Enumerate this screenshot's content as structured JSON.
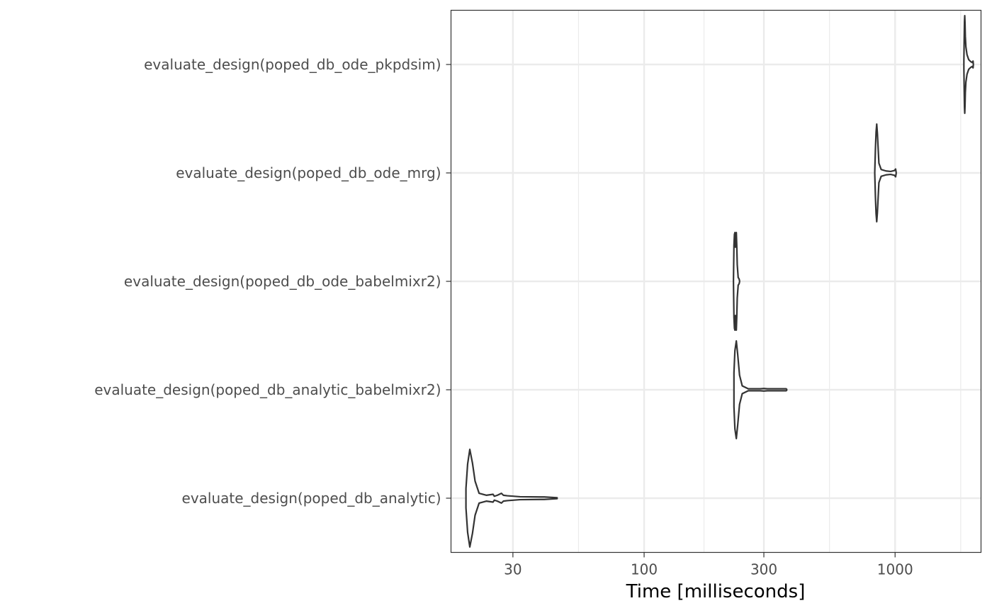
{
  "chart_data": {
    "type": "violin",
    "title": "",
    "xlabel": "Time [milliseconds]",
    "ylabel": "",
    "x_scale": "log10",
    "xlim": [
      17,
      2200
    ],
    "x_ticks": [
      30,
      100,
      300,
      1000
    ],
    "x_tick_labels": [
      "30",
      "100",
      "300",
      "1000"
    ],
    "grid": true,
    "categories": [
      "evaluate_design(poped_db_ode_pkpdsim)",
      "evaluate_design(poped_db_ode_mrg)",
      "evaluate_design(poped_db_ode_babelmixr2)",
      "evaluate_design(poped_db_analytic_babelmixr2)",
      "evaluate_design(poped_db_analytic)"
    ],
    "series": [
      {
        "name": "evaluate_design(poped_db_ode_pkpdsim)",
        "min": 1880,
        "max": 2050,
        "profile": [
          [
            1880,
            0.08
          ],
          [
            1885,
            0.5
          ],
          [
            1890,
            0.88
          ],
          [
            1895,
            1.0
          ],
          [
            1900,
            0.84
          ],
          [
            1905,
            0.58
          ],
          [
            1915,
            0.36
          ],
          [
            1935,
            0.2
          ],
          [
            1965,
            0.1
          ],
          [
            2000,
            0.06
          ],
          [
            2030,
            0.04
          ],
          [
            2045,
            0.07
          ],
          [
            2050,
            0.01
          ]
        ]
      },
      {
        "name": "evaluate_design(poped_db_ode_mrg)",
        "min": 830,
        "max": 1010,
        "profile": [
          [
            830,
            0.03
          ],
          [
            835,
            0.5
          ],
          [
            840,
            0.84
          ],
          [
            845,
            1.0
          ],
          [
            850,
            0.82
          ],
          [
            855,
            0.56
          ],
          [
            862,
            0.2
          ],
          [
            880,
            0.07
          ],
          [
            920,
            0.04
          ],
          [
            960,
            0.03
          ],
          [
            995,
            0.05
          ],
          [
            1005,
            0.08
          ],
          [
            1010,
            0.01
          ]
        ]
      },
      {
        "name": "evaluate_design(poped_db_ode_babelmixr2)",
        "min": 227,
        "max": 240,
        "profile": [
          [
            227,
            0.04
          ],
          [
            228,
            0.74
          ],
          [
            229,
            0.96
          ],
          [
            230,
            1.0
          ],
          [
            231,
            0.7
          ],
          [
            232,
            0.93
          ],
          [
            233,
            1.0
          ],
          [
            234,
            0.72
          ],
          [
            235,
            0.34
          ],
          [
            237,
            0.08
          ],
          [
            239,
            0.05
          ],
          [
            240,
            0.01
          ]
        ]
      },
      {
        "name": "evaluate_design(poped_db_analytic_babelmixr2)",
        "min": 228,
        "max": 370,
        "profile": [
          [
            228,
            0.35
          ],
          [
            230,
            0.8
          ],
          [
            233,
            1.0
          ],
          [
            236,
            0.72
          ],
          [
            240,
            0.3
          ],
          [
            246,
            0.08
          ],
          [
            260,
            0.02
          ],
          [
            290,
            0.02
          ],
          [
            300,
            0.025
          ],
          [
            310,
            0.02
          ],
          [
            350,
            0.02
          ],
          [
            368,
            0.02
          ],
          [
            370,
            0.01
          ]
        ]
      },
      {
        "name": "evaluate_design(poped_db_analytic)",
        "min": 19.5,
        "max": 45,
        "profile": [
          [
            19.5,
            0.2
          ],
          [
            19.8,
            0.7
          ],
          [
            20.2,
            1.0
          ],
          [
            20.7,
            0.72
          ],
          [
            21.2,
            0.35
          ],
          [
            22,
            0.1
          ],
          [
            23.5,
            0.06
          ],
          [
            25,
            0.08
          ],
          [
            25.3,
            0.04
          ],
          [
            26,
            0.06
          ],
          [
            27,
            0.1
          ],
          [
            27.5,
            0.06
          ],
          [
            28.5,
            0.05
          ],
          [
            32,
            0.03
          ],
          [
            40,
            0.025
          ],
          [
            45,
            0.01
          ]
        ]
      }
    ]
  }
}
